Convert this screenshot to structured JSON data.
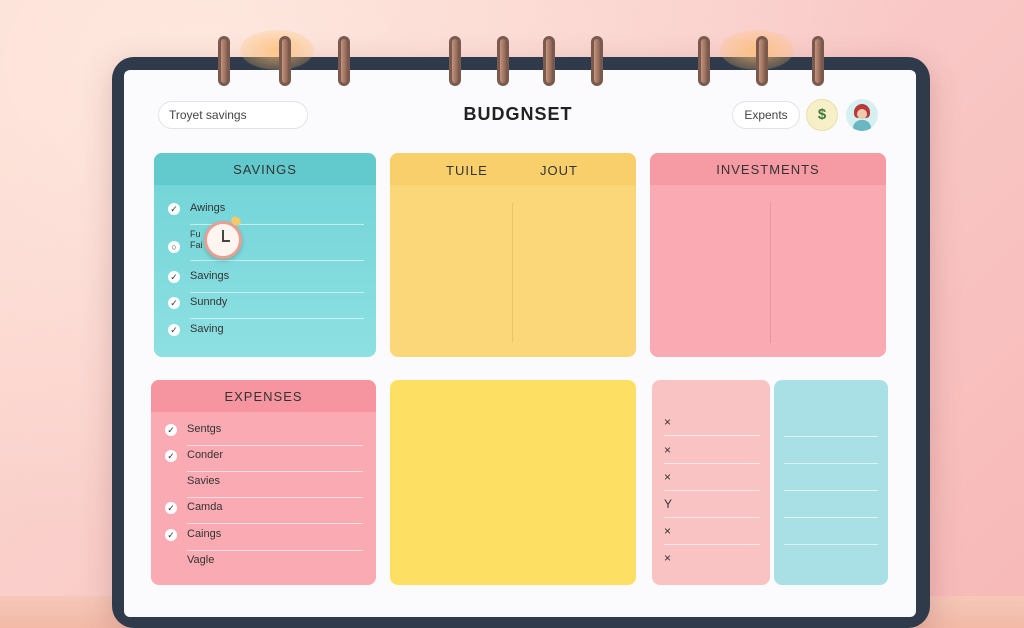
{
  "header": {
    "search_text": "Troyet savings",
    "title": "BUDGNSET",
    "expents_label": "Expents",
    "coin_symbol": "$"
  },
  "savings": {
    "title": "SAVINGS",
    "items": [
      {
        "label": "Awings",
        "checked": true
      },
      {
        "label": "Fu",
        "checked": false
      },
      {
        "label": "Fai",
        "checked": true
      },
      {
        "label": "Savings",
        "checked": true
      },
      {
        "label": "Sunndy",
        "checked": true
      },
      {
        "label": "Saving",
        "checked": true
      }
    ]
  },
  "tuile": {
    "title_left": "TUILE",
    "title_right": "JOUT"
  },
  "investments": {
    "title": "INVESTMENTS"
  },
  "expenses": {
    "title": "EXPENSES",
    "items": [
      {
        "label": "Sentgs",
        "checked": true
      },
      {
        "label": "Conder",
        "checked": true
      },
      {
        "label": "Savies",
        "checked": false
      },
      {
        "label": "Camda",
        "checked": true
      },
      {
        "label": "Caings",
        "checked": true
      },
      {
        "label": "Vagle",
        "checked": false
      }
    ]
  },
  "marks": [
    "×",
    "×",
    "×",
    "Y",
    "×",
    "×"
  ],
  "colors": {
    "savings": "#6fd3d6",
    "tuile": "#fbd77a",
    "investments": "#f9aab2",
    "expenses": "#f9aab2",
    "yellow": "#fde063",
    "blue": "#a8e0e6",
    "frame": "#2f3a4a"
  },
  "icons": [
    "clock-icon",
    "coin-icon",
    "avatar"
  ]
}
